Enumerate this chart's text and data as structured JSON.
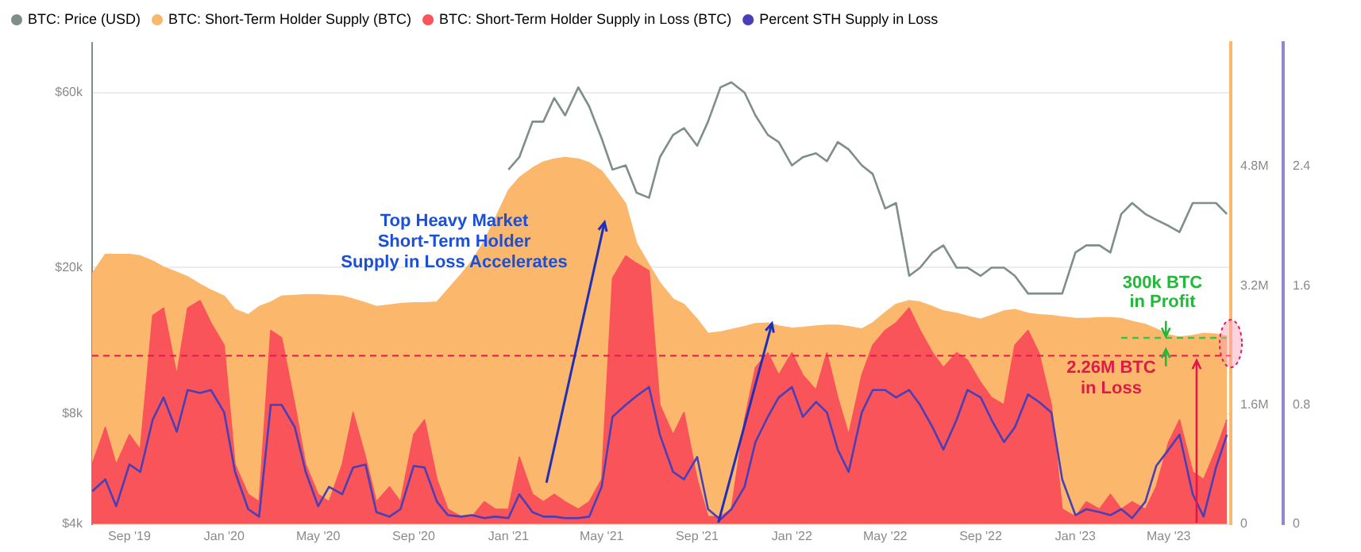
{
  "chart_data": {
    "type": "line",
    "x": [
      "2019-07-15",
      "2019-08-01",
      "2019-08-15",
      "2019-09-01",
      "2019-09-15",
      "2019-10-01",
      "2019-10-15",
      "2019-11-01",
      "2019-11-15",
      "2019-12-01",
      "2019-12-15",
      "2020-01-01",
      "2020-01-15",
      "2020-02-01",
      "2020-02-15",
      "2020-03-01",
      "2020-03-15",
      "2020-04-01",
      "2020-04-15",
      "2020-05-01",
      "2020-05-15",
      "2020-06-01",
      "2020-06-15",
      "2020-07-01",
      "2020-07-15",
      "2020-08-01",
      "2020-08-15",
      "2020-09-01",
      "2020-09-15",
      "2020-10-01",
      "2020-10-15",
      "2020-11-01",
      "2020-11-15",
      "2020-12-01",
      "2020-12-15",
      "2021-01-01",
      "2021-01-15",
      "2021-02-01",
      "2021-02-15",
      "2021-03-01",
      "2021-03-15",
      "2021-04-01",
      "2021-04-15",
      "2021-05-01",
      "2021-05-15",
      "2021-06-01",
      "2021-06-15",
      "2021-07-01",
      "2021-07-15",
      "2021-08-01",
      "2021-08-15",
      "2021-09-01",
      "2021-09-15",
      "2021-10-01",
      "2021-10-15",
      "2021-11-01",
      "2021-11-15",
      "2021-12-01",
      "2021-12-15",
      "2022-01-01",
      "2022-01-15",
      "2022-02-01",
      "2022-02-15",
      "2022-03-01",
      "2022-03-15",
      "2022-04-01",
      "2022-04-15",
      "2022-05-01",
      "2022-05-15",
      "2022-06-01",
      "2022-06-15",
      "2022-07-01",
      "2022-07-15",
      "2022-08-01",
      "2022-08-15",
      "2022-09-01",
      "2022-09-15",
      "2022-10-01",
      "2022-10-15",
      "2022-11-01",
      "2022-11-15",
      "2022-12-01",
      "2022-12-15",
      "2023-01-01",
      "2023-01-15",
      "2023-02-01",
      "2023-02-15",
      "2023-03-01",
      "2023-03-15",
      "2023-04-01",
      "2023-04-15",
      "2023-05-01",
      "2023-05-15",
      "2023-06-01",
      "2023-06-15",
      "2023-07-01",
      "2023-07-15"
    ],
    "series": [
      {
        "name": "BTC: Price (USD)",
        "type": "line",
        "color": "#7d8f87",
        "values": [
          null,
          null,
          null,
          null,
          null,
          null,
          null,
          null,
          null,
          null,
          null,
          null,
          null,
          null,
          null,
          null,
          null,
          null,
          null,
          null,
          null,
          null,
          null,
          null,
          null,
          null,
          null,
          null,
          null,
          null,
          null,
          null,
          null,
          null,
          null,
          37000,
          40000,
          50000,
          50000,
          58000,
          52000,
          62000,
          55000,
          45000,
          37000,
          38000,
          32000,
          31000,
          40000,
          46000,
          48000,
          43000,
          50000,
          62000,
          64000,
          60000,
          52000,
          46000,
          44000,
          38000,
          40000,
          41000,
          39000,
          44000,
          42000,
          38000,
          36000,
          29000,
          30000,
          19000,
          20000,
          22000,
          23000,
          20000,
          20000,
          19000,
          20000,
          20000,
          19000,
          17000,
          17000,
          17000,
          17000,
          22000,
          23000,
          23000,
          22000,
          28000,
          30000,
          28000,
          27000,
          26000,
          25000,
          30000,
          30000,
          30000,
          28000
        ]
      },
      {
        "name": "BTC: Short-Term Holder Supply (BTC)",
        "type": "area",
        "axis": "y2",
        "color": "#fbb86c",
        "values": [
          3.36,
          3.62,
          3.62,
          3.62,
          3.6,
          3.53,
          3.45,
          3.38,
          3.32,
          3.22,
          3.14,
          3.06,
          2.88,
          2.81,
          2.92,
          2.98,
          3.06,
          3.07,
          3.08,
          3.08,
          3.07,
          3.06,
          3.02,
          2.97,
          2.92,
          2.94,
          2.96,
          2.97,
          2.97,
          2.98,
          3.15,
          3.35,
          3.53,
          3.8,
          4.1,
          4.48,
          4.65,
          4.78,
          4.86,
          4.9,
          4.92,
          4.9,
          4.85,
          4.74,
          4.55,
          4.3,
          3.77,
          3.48,
          3.24,
          3.02,
          2.95,
          2.75,
          2.56,
          2.58,
          2.61,
          2.65,
          2.69,
          2.7,
          2.66,
          2.63,
          2.64,
          2.66,
          2.67,
          2.67,
          2.65,
          2.62,
          2.7,
          2.84,
          2.95,
          3.0,
          2.98,
          2.92,
          2.86,
          2.83,
          2.79,
          2.75,
          2.8,
          2.86,
          2.88,
          2.83,
          2.81,
          2.8,
          2.78,
          2.76,
          2.76,
          2.77,
          2.77,
          2.76,
          2.72,
          2.68,
          2.62,
          2.54,
          2.51,
          2.53,
          2.56,
          2.55,
          2.52
        ]
      },
      {
        "name": "BTC: Short-Term Holder Supply in Loss (BTC)",
        "type": "area",
        "axis": "y2",
        "color": "#f9545a",
        "values": [
          0.8,
          1.3,
          0.8,
          1.2,
          1.0,
          2.8,
          2.9,
          2.0,
          2.9,
          3.0,
          2.7,
          2.4,
          0.8,
          0.4,
          0.3,
          2.6,
          2.5,
          1.6,
          0.8,
          0.4,
          0.3,
          0.8,
          1.5,
          0.9,
          0.3,
          0.5,
          0.3,
          1.2,
          1.4,
          0.6,
          0.2,
          0.1,
          0.1,
          0.3,
          0.2,
          0.2,
          0.9,
          0.4,
          0.3,
          0.4,
          0.3,
          0.2,
          0.3,
          0.6,
          3.3,
          3.6,
          3.5,
          3.4,
          1.6,
          1.2,
          1.5,
          0.6,
          0.1,
          0.1,
          0.2,
          1.4,
          2.1,
          2.3,
          2.0,
          2.3,
          2.0,
          1.8,
          2.3,
          1.7,
          1.2,
          2.0,
          2.4,
          2.6,
          2.7,
          2.9,
          2.6,
          2.3,
          2.1,
          2.3,
          2.2,
          1.9,
          1.7,
          1.6,
          2.4,
          2.6,
          2.3,
          1.6,
          0.2,
          0.1,
          0.3,
          0.2,
          0.4,
          0.2,
          0.3,
          0.2,
          0.5,
          1.1,
          1.4,
          0.7,
          0.6,
          1.0,
          1.4
        ]
      },
      {
        "name": "Percent STH Supply in Loss",
        "type": "line",
        "axis": "y3",
        "color": "#4b3fb5",
        "values": [
          0.22,
          0.3,
          0.12,
          0.4,
          0.35,
          0.7,
          0.85,
          0.62,
          0.9,
          0.88,
          0.9,
          0.75,
          0.35,
          0.1,
          0.05,
          0.8,
          0.8,
          0.65,
          0.35,
          0.12,
          0.25,
          0.2,
          0.38,
          0.4,
          0.08,
          0.05,
          0.1,
          0.39,
          0.38,
          0.15,
          0.06,
          0.05,
          0.06,
          0.04,
          0.05,
          0.04,
          0.2,
          0.08,
          0.05,
          0.05,
          0.04,
          0.04,
          0.05,
          0.25,
          0.72,
          0.8,
          0.86,
          0.92,
          0.6,
          0.35,
          0.3,
          0.45,
          0.1,
          0.03,
          0.1,
          0.25,
          0.55,
          0.72,
          0.85,
          0.92,
          0.72,
          0.82,
          0.75,
          0.5,
          0.35,
          0.75,
          0.9,
          0.9,
          0.85,
          0.9,
          0.8,
          0.65,
          0.5,
          0.7,
          0.9,
          0.85,
          0.7,
          0.55,
          0.65,
          0.87,
          0.82,
          0.75,
          0.3,
          0.06,
          0.1,
          0.08,
          0.06,
          0.1,
          0.04,
          0.15,
          0.39,
          0.5,
          0.6,
          0.2,
          0.05,
          0.38,
          0.6
        ]
      },
      {
        "type": "line",
        "axis": "y2",
        "color": "#3cc24a",
        "line_style": "dashed",
        "x": [
          "2023-03-01",
          "2023-07-15"
        ],
        "values": [
          2.5,
          2.5
        ]
      }
    ],
    "xlim": [
      "2019-07-15",
      "2023-07-20"
    ],
    "xticks": [
      {
        "value": "2019-09-01",
        "label": "Sep '19"
      },
      {
        "value": "2020-01-01",
        "label": "Jan '20"
      },
      {
        "value": "2020-05-01",
        "label": "May '20"
      },
      {
        "value": "2020-09-01",
        "label": "Sep '20"
      },
      {
        "value": "2021-01-01",
        "label": "Jan '21"
      },
      {
        "value": "2021-05-01",
        "label": "May '21"
      },
      {
        "value": "2021-09-01",
        "label": "Sep '21"
      },
      {
        "value": "2022-01-01",
        "label": "Jan '22"
      },
      {
        "value": "2022-05-01",
        "label": "May '22"
      },
      {
        "value": "2022-09-01",
        "label": "Sep '22"
      },
      {
        "value": "2023-01-01",
        "label": "Jan '23"
      },
      {
        "value": "2023-05-01",
        "label": "May '23"
      }
    ],
    "ylim": [
      4000,
      82000
    ],
    "yticks": [
      {
        "value": 4000,
        "label": "$4k"
      },
      {
        "value": 8000,
        "label": "$8k"
      },
      {
        "value": 20000,
        "label": "$20k"
      },
      {
        "value": 60000,
        "label": "$60k"
      }
    ],
    "y2lim": [
      0,
      6.46
    ],
    "y2ticks": [
      0,
      {
        "value": 1.6,
        "label": "1.6M"
      },
      {
        "value": 3.2,
        "label": "3.2M"
      },
      {
        "value": 4.8,
        "label": "4.8M"
      }
    ],
    "y3lim": [
      0,
      3.23
    ],
    "y3ticks": [
      0,
      0.8,
      1.6,
      2.4
    ],
    "log": "y",
    "grid": "y",
    "legend": "top left",
    "marker": "none",
    "ref_lines": [
      {
        "axis": "y2",
        "value": 2.26,
        "color": "#e8194a",
        "line_style": "dashed"
      }
    ],
    "annotations": [
      "Top Heavy Market\nShort-Term Holder\nSupply in Loss Accelerates",
      "300k BTC\nin Profit",
      "2.26M BTC\nin Loss"
    ]
  }
}
